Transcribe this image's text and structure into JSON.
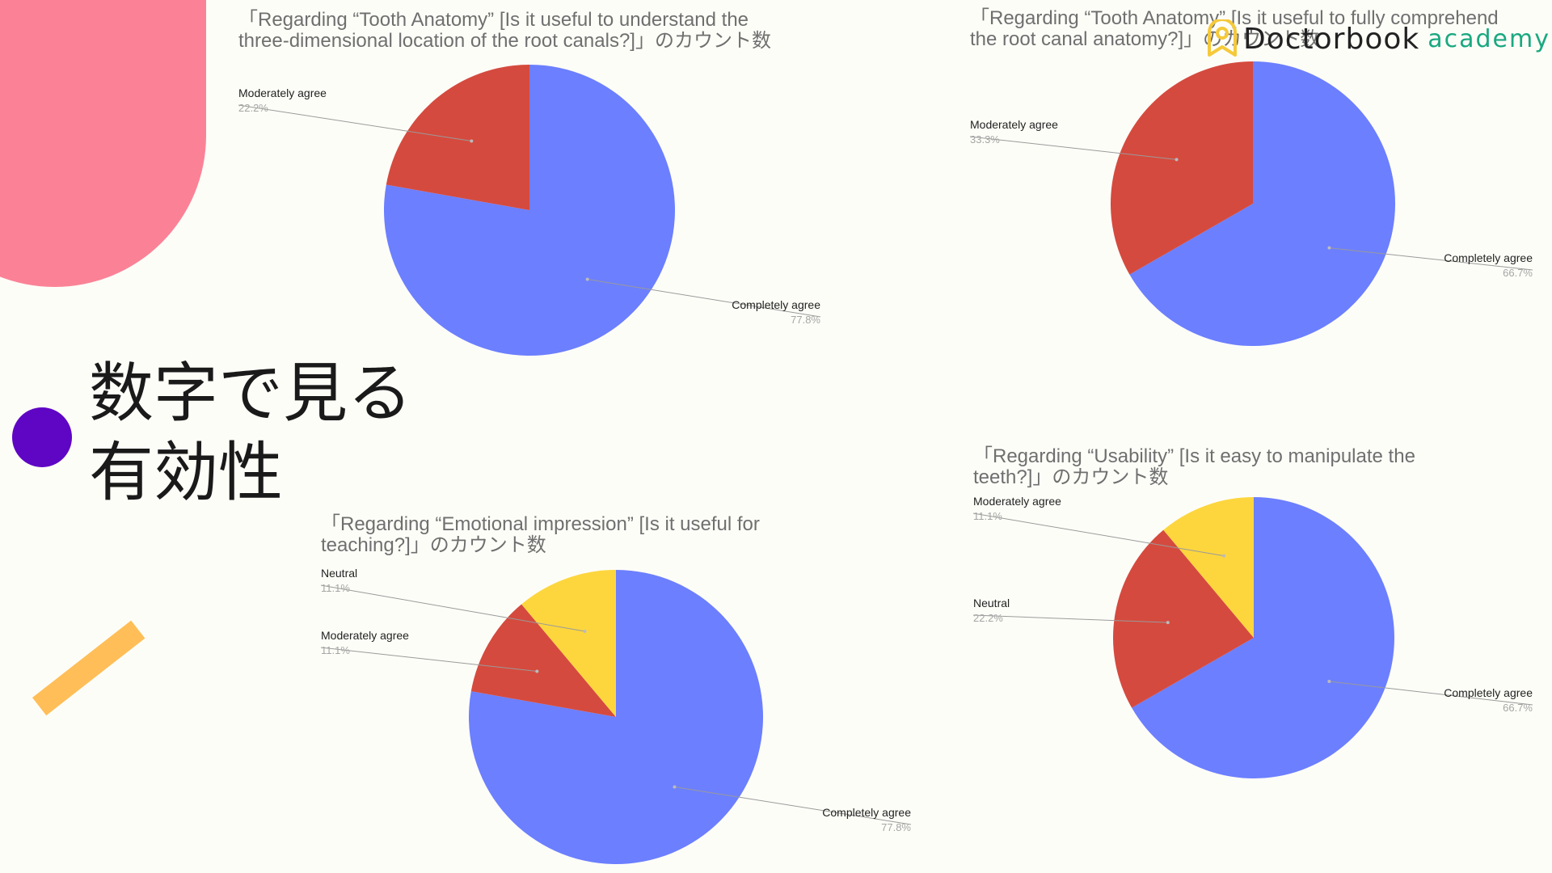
{
  "heading": {
    "line1": "数字で見る",
    "line2": "有効性"
  },
  "brand": {
    "name": "Doctorbook",
    "sub": "academy"
  },
  "chart_data": [
    {
      "type": "pie",
      "title": [
        "「Regarding “Tooth Anatomy” [Is it useful to understand the",
        "three-dimensional location of the root canals?]」のカウント数"
      ],
      "slices": [
        {
          "label": "Completely agree",
          "value": 77.8,
          "display": "77.8%",
          "color": "#6c7fff"
        },
        {
          "label": "Moderately agree",
          "value": 22.2,
          "display": "22.2%",
          "color": "#d54a3e"
        }
      ]
    },
    {
      "type": "pie",
      "title": [
        "「Regarding “Tooth Anatomy” [Is it useful to fully comprehend",
        "the root canal anatomy?]」のカウント数"
      ],
      "slices": [
        {
          "label": "Completely agree",
          "value": 66.7,
          "display": "66.7%",
          "color": "#6c7fff"
        },
        {
          "label": "Moderately agree",
          "value": 33.3,
          "display": "33.3%",
          "color": "#d54a3e"
        }
      ]
    },
    {
      "type": "pie",
      "title": [
        "「Regarding “Emotional impression” [Is it useful for",
        "teaching?]」のカウント数"
      ],
      "slices": [
        {
          "label": "Completely agree",
          "value": 77.8,
          "display": "77.8%",
          "color": "#6c7fff"
        },
        {
          "label": "Moderately agree",
          "value": 11.1,
          "display": "11.1%",
          "color": "#d54a3e"
        },
        {
          "label": "Neutral",
          "value": 11.1,
          "display": "11.1%",
          "color": "#fdd63e"
        }
      ]
    },
    {
      "type": "pie",
      "title": [
        "「Regarding “Usability” [Is it easy to manipulate the",
        "teeth?]」のカウント数"
      ],
      "slices": [
        {
          "label": "Completely agree",
          "value": 66.7,
          "display": "66.7%",
          "color": "#6c7fff"
        },
        {
          "label": "Neutral",
          "value": 22.2,
          "display": "22.2%",
          "color": "#d54a3e"
        },
        {
          "label": "Moderately agree",
          "value": 11.1,
          "display": "11.1%",
          "color": "#fdd63e"
        }
      ]
    }
  ]
}
